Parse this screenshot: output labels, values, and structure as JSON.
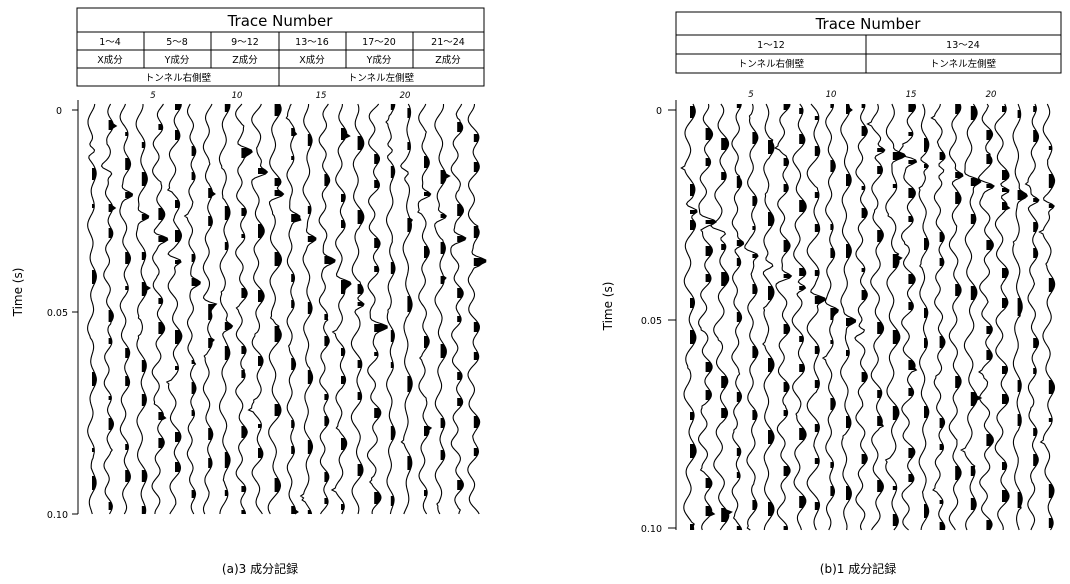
{
  "figure": {
    "panels": [
      {
        "id": "a",
        "header_title": "Trace Number",
        "ranges": [
          "1～4",
          "5～8",
          "9～12",
          "13～16",
          "17～20",
          "21～24"
        ],
        "components": [
          "X成分",
          "Y成分",
          "Z成分",
          "X成分",
          "Y成分",
          "Z成分"
        ],
        "walls": [
          "トンネル右側壁",
          "トンネル左側壁"
        ],
        "trace_ticks": [
          "5",
          "10",
          "15",
          "20"
        ],
        "time_ticks": [
          "0",
          "0.05",
          "0.10"
        ],
        "ylabel": "Time (s)",
        "caption": "(a)3 成分記録"
      },
      {
        "id": "b",
        "header_title": "Trace Number",
        "ranges": [
          "1～12",
          "13～24"
        ],
        "walls": [
          "トンネル右側壁",
          "トンネル左側壁"
        ],
        "trace_ticks": [
          "5",
          "10",
          "15",
          "20"
        ],
        "time_ticks": [
          "0",
          "0.05",
          "0.10"
        ],
        "ylabel": "Time (s)",
        "caption": "(b)1 成分記録"
      }
    ]
  },
  "chart_data": [
    {
      "type": "wiggle-trace seismic record",
      "traces": 24,
      "x_unit": "trace number",
      "y_unit": "s",
      "ylim": [
        0,
        0.1
      ],
      "trace_ticks": [
        5,
        10,
        15,
        20
      ],
      "time_ticks": [
        0,
        0.05,
        0.1
      ]
    },
    {
      "type": "wiggle-trace seismic record",
      "traces": 24,
      "x_unit": "trace number",
      "y_unit": "s",
      "ylim": [
        0,
        0.1
      ],
      "trace_ticks": [
        5,
        10,
        15,
        20
      ],
      "time_ticks": [
        0,
        0.05,
        0.1
      ]
    }
  ]
}
